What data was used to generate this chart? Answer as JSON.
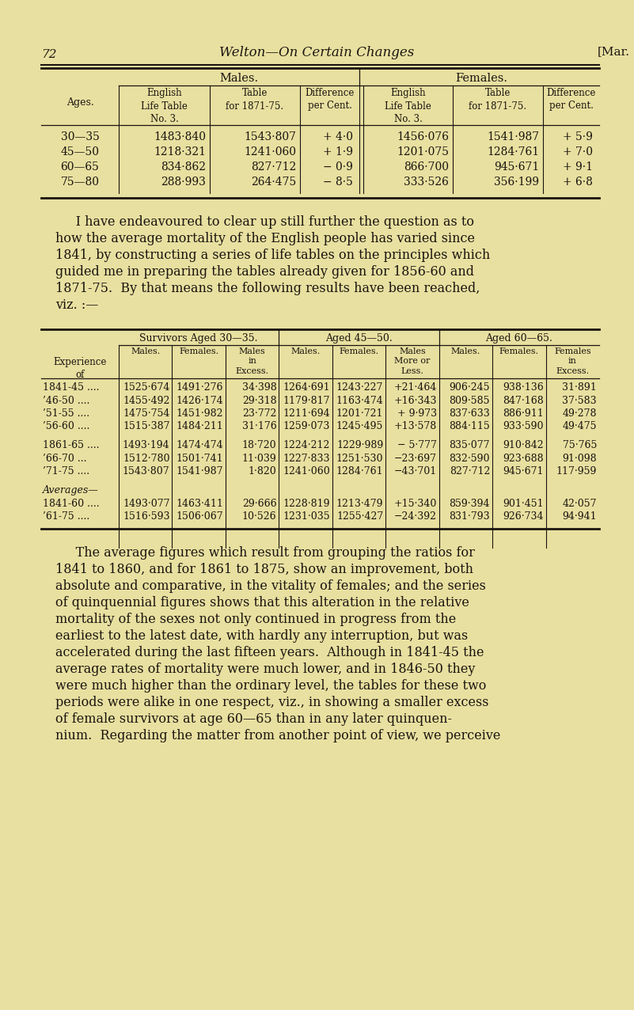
{
  "bg_color": "#e8e0a0",
  "text_color": "#1a1410",
  "page_number": "72",
  "header_title": "Welton—On Certain Changes",
  "header_right": "[Mar.",
  "table1": {
    "ages": [
      "30—35",
      "45—50",
      "60—65",
      "75—80"
    ],
    "male_elt": [
      "1483·840",
      "1218·321",
      "834·862",
      "288·993"
    ],
    "male_table": [
      "1543·807",
      "1241·060",
      "827·712",
      "264·475"
    ],
    "male_diff": [
      "+ 4·0",
      "+ 1·9",
      "− 0·9",
      "− 8·5"
    ],
    "female_elt": [
      "1456·076",
      "1201·075",
      "866·700",
      "333·526"
    ],
    "female_table": [
      "1541·987",
      "1284·761",
      "945·671",
      "356·199"
    ],
    "female_diff": [
      "+ 5·9",
      "+ 7·0",
      "+ 9·1",
      "+ 6·8"
    ]
  },
  "para1_lines": [
    "     I have endeavoured to clear up still further the question as to",
    "how the average mortality of the English people has varied since",
    "1841, by constructing a series of life tables on the principles which",
    "guided me in preparing the tables already given for 1856-60 and",
    "1871-75.  By that means the following results have been reached,",
    "viz. :—"
  ],
  "table2": {
    "exp_rows": [
      "1841-45 ....",
      "’46-50 ....",
      "’51-55 ....",
      "’56-60 ....",
      "",
      "1861-65 ....",
      "’66-70 ...",
      "’71-75 ....",
      "",
      "Averages—",
      "1841-60 ....",
      "’61-75 ...."
    ],
    "surv_males": [
      "1525·674",
      "1455·492",
      "1475·754",
      "1515·387",
      "",
      "1493·194",
      "1512·780",
      "1543·807",
      "",
      "",
      "1493·077",
      "1516·593"
    ],
    "surv_females": [
      "1491·276",
      "1426·174",
      "1451·982",
      "1484·211",
      "",
      "1474·474",
      "1501·741",
      "1541·987",
      "",
      "",
      "1463·411",
      "1506·067"
    ],
    "surv_excess": [
      "34·398",
      "29·318",
      "23·772",
      "31·176",
      "",
      "18·720",
      "11·039",
      "1·820",
      "",
      "",
      "29·666",
      "10·526"
    ],
    "aged45_males": [
      "1264·691",
      "1179·817",
      "1211·694",
      "1259·073",
      "",
      "1224·212",
      "1227·833",
      "1241·060",
      "",
      "",
      "1228·819",
      "1231·035"
    ],
    "aged45_females": [
      "1243·227",
      "1163·474",
      "1201·721",
      "1245·495",
      "",
      "1229·989",
      "1251·530",
      "1284·761",
      "",
      "",
      "1213·479",
      "1255·427"
    ],
    "aged45_diff": [
      "+21·464",
      "+16·343",
      "+ 9·973",
      "+13·578",
      "",
      "− 5·777",
      "−23·697",
      "−43·701",
      "",
      "",
      "+15·340",
      "−24·392"
    ],
    "aged60_males": [
      "906·245",
      "809·585",
      "837·633",
      "884·115",
      "",
      "835·077",
      "832·590",
      "827·712",
      "",
      "",
      "859·394",
      "831·793"
    ],
    "aged60_females": [
      "938·136",
      "847·168",
      "886·911",
      "933·590",
      "",
      "910·842",
      "923·688",
      "945·671",
      "",
      "",
      "901·451",
      "926·734"
    ],
    "aged60_excess": [
      "31·891",
      "37·583",
      "49·278",
      "49·475",
      "",
      "75·765",
      "91·098",
      "117·959",
      "",
      "",
      "42·057",
      "94·941"
    ]
  },
  "para2_lines": [
    "     The average figures which result from grouping the ratios for",
    "1841 to 1860, and for 1861 to 1875, show an improvement, both",
    "absolute and comparative, in the vitality of females; and the series",
    "of quinquennial figures shows that this alteration in the relative",
    "mortality of the sexes not only continued in progress from the",
    "earliest to the latest date, with hardly any interruption, but was",
    "accelerated during the last fifteen years.  Although in 1841-45 the",
    "average rates of mortality were much lower, and in 1846-50 they",
    "were much higher than the ordinary level, the tables for these two",
    "periods were alike in one respect, viz., in showing a smaller excess",
    "of female survivors at age 60—65 than in any later quinquen-",
    "nium.  Regarding the matter from another point of view, we perceive"
  ]
}
